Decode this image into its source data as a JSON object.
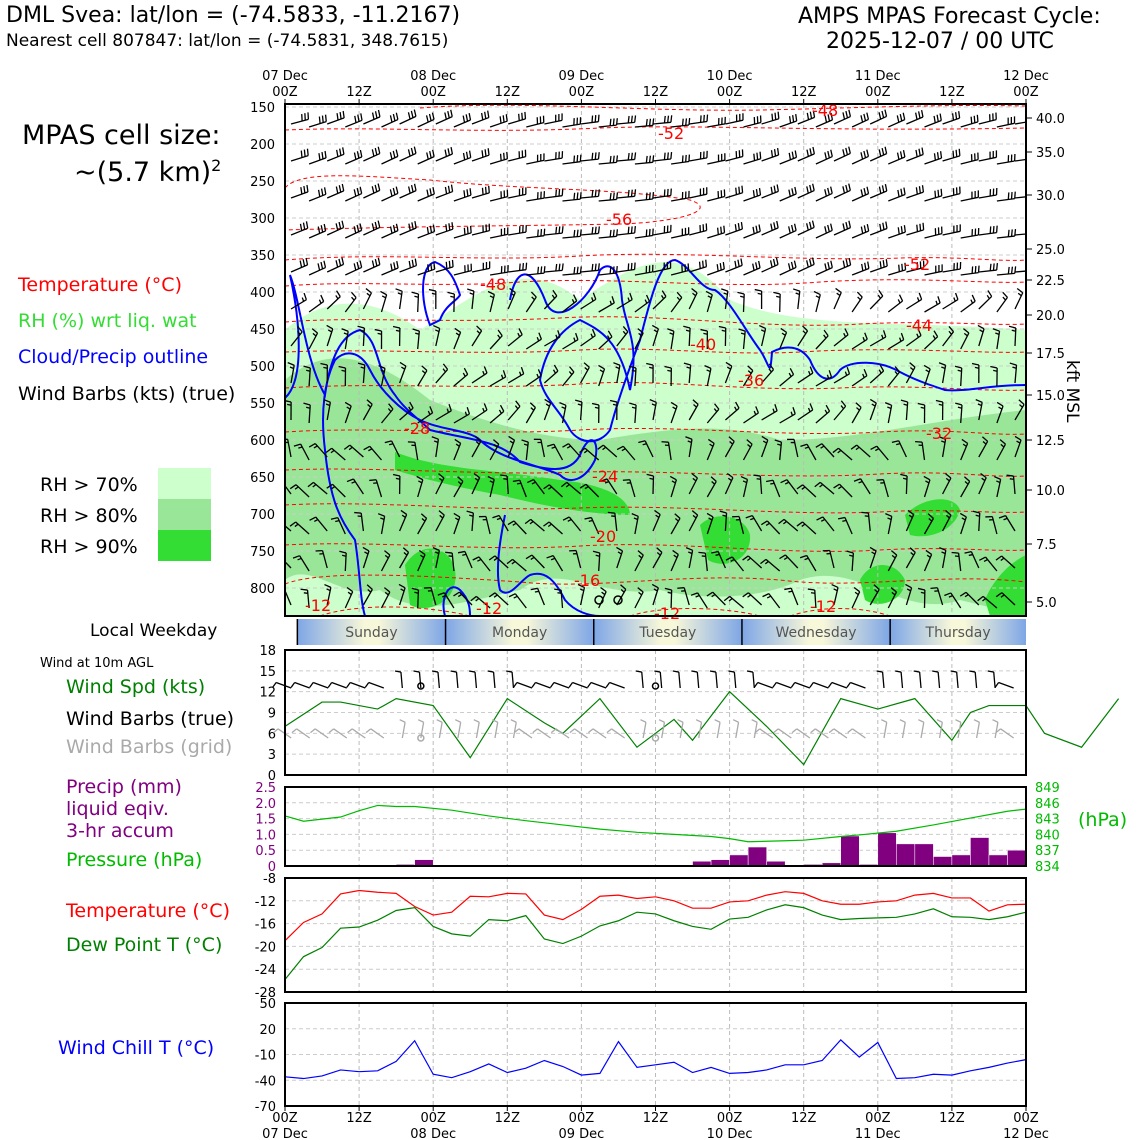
{
  "header": {
    "station_line": "DML Svea: lat/lon = (-74.5833, -11.2167)",
    "cell_line": "Nearest cell 807847: lat/lon = (-74.5831, 348.7615)",
    "cycle_title": "AMPS MPAS Forecast Cycle:",
    "cycle_time": "2025-12-07 / 00 UTC"
  },
  "left_panel": {
    "cell_size_title": "MPAS cell size:",
    "cell_size_value": "~(5.7 km)",
    "cell_size_exp": "2",
    "legend_temp": "Temperature (°C)",
    "legend_rh": "RH (%) wrt liq. wat",
    "legend_cloud": "Cloud/Precip outline",
    "legend_wind": "Wind Barbs (kts) (true)",
    "rh70": "RH > 70%",
    "rh80": "RH > 80%",
    "rh90": "RH > 90%",
    "local_weekday": "Local Weekday",
    "wind10m": "Wind at 10m AGL",
    "wind_spd": "Wind Spd (kts)",
    "wind_barbs_true": "Wind Barbs (true)",
    "wind_barbs_grid": "Wind Barbs (grid)",
    "precip_l1": "Precip (mm)",
    "precip_l2": "liquid eqiv.",
    "precip_l3": "3-hr accum",
    "pressure_label": "Pressure (hPa)",
    "temp_label": "Temperature (°C)",
    "dew_label": "Dew Point T (°C)",
    "chill_label": "Wind Chill T (°C)",
    "hpa_right": "(hPa)",
    "kft_label": "kft MSL"
  },
  "colors": {
    "temp": "#ff0000",
    "rh_text": "#33dd33",
    "cloud": "#0000ff",
    "rh70": "#ccffcc",
    "rh80": "#99e699",
    "rh90": "#33dd33",
    "wind_spd": "#008000",
    "grid_barb": "#aaaaaa",
    "precip": "#800080",
    "pressure": "#00bb00",
    "chill": "#0000ff",
    "dew": "#008000"
  },
  "chart_data": {
    "time_top_labels": [
      [
        "07 Dec",
        "00Z"
      ],
      [
        "",
        "12Z"
      ],
      [
        "08 Dec",
        "00Z"
      ],
      [
        "",
        "12Z"
      ],
      [
        "09 Dec",
        "00Z"
      ],
      [
        "",
        "12Z"
      ],
      [
        "10 Dec",
        "00Z"
      ],
      [
        "",
        "12Z"
      ],
      [
        "11 Dec",
        "00Z"
      ],
      [
        "",
        "12Z"
      ],
      [
        "12 Dec",
        "00Z"
      ]
    ],
    "time_bottom_labels": [
      [
        "00Z",
        "07 Dec"
      ],
      [
        "12Z",
        ""
      ],
      [
        "00Z",
        "08 Dec"
      ],
      [
        "12Z",
        ""
      ],
      [
        "00Z",
        "09 Dec"
      ],
      [
        "12Z",
        ""
      ],
      [
        "00Z",
        "10 Dec"
      ],
      [
        "12Z",
        ""
      ],
      [
        "00Z",
        "11 Dec"
      ],
      [
        "12Z",
        ""
      ],
      [
        "00Z",
        "12 Dec"
      ]
    ],
    "weekdays": [
      "Sunday",
      "Monday",
      "Tuesday",
      "Wednesday",
      "Thursday"
    ],
    "pressure_levels": [
      "150",
      "200",
      "250",
      "300",
      "350",
      "400",
      "450",
      "500",
      "550",
      "600",
      "650",
      "700",
      "750",
      "800"
    ],
    "kft_levels": [
      "40.0",
      "35.0",
      "30.0",
      "25.0",
      "22.5",
      "20.0",
      "17.5",
      "15.0",
      "12.5",
      "10.0",
      "7.5",
      "5.0"
    ],
    "temp_contour_labels": [
      "-48",
      "-52",
      "-56",
      "-52",
      "-48",
      "-44",
      "-40",
      "-36",
      "-32",
      "-28",
      "-24",
      "-20",
      "-16",
      "-12",
      "-12",
      "-12",
      "-12"
    ],
    "wind_speed": {
      "type": "line",
      "ylim": [
        0,
        18
      ],
      "yticks": [
        "18",
        "15",
        "12",
        "9",
        "6",
        "3",
        "0"
      ],
      "hours": [
        0,
        6,
        9,
        15,
        18,
        24,
        30,
        36,
        42,
        45,
        51,
        57,
        63,
        66,
        72,
        78,
        84,
        90,
        96,
        102,
        108,
        111,
        114,
        117,
        120,
        123,
        129,
        135
      ],
      "values": [
        7,
        10.5,
        10.5,
        9.5,
        11,
        10,
        2.5,
        11,
        7.5,
        6,
        11,
        4,
        8,
        5,
        12,
        7,
        1.5,
        11,
        9.5,
        11,
        5,
        9,
        10,
        10,
        10,
        6,
        4,
        11
      ]
    },
    "precip": {
      "type": "bar",
      "ylim": [
        0,
        2.5
      ],
      "yticks": [
        "2.5",
        "2.0",
        "1.5",
        "1.0",
        "0.5",
        "0"
      ],
      "bars_hour": [
        18,
        21,
        66,
        69,
        72,
        75,
        78,
        81,
        84,
        87,
        90,
        93,
        96,
        99,
        102,
        105,
        108,
        111,
        114,
        117
      ],
      "bars_mm": [
        0.05,
        0.2,
        0.15,
        0.2,
        0.35,
        0.6,
        0.15,
        0.02,
        0.05,
        0.1,
        0.95,
        0.05,
        1.05,
        0.7,
        0.7,
        0.3,
        0.35,
        0.9,
        0.35,
        0.5
      ],
      "pressure_ticks": [
        "849",
        "846",
        "843",
        "840",
        "837",
        "834"
      ],
      "pressure_range": [
        834,
        849
      ],
      "pressure_hours": [
        0,
        3,
        9,
        12,
        15,
        18,
        21,
        27,
        33,
        39,
        45,
        51,
        57,
        63,
        69,
        72,
        75,
        81,
        84,
        90,
        93,
        99,
        105,
        111,
        117,
        120
      ],
      "pressure_hpa": [
        843.5,
        842.5,
        843.3,
        844.5,
        845.5,
        845.3,
        845.3,
        844.6,
        843.5,
        842.6,
        841.8,
        841.0,
        840.4,
        840.0,
        839.6,
        839.2,
        838.6,
        838.8,
        838.9,
        839.6,
        839.9,
        840.6,
        841.8,
        843.1,
        844.4,
        844.8
      ]
    },
    "temperature": {
      "type": "line",
      "ylim": [
        -28,
        -8
      ],
      "yticks": [
        "-8",
        "-12",
        "-16",
        "-20",
        "-24",
        "-28"
      ],
      "hours": [
        0,
        3,
        6,
        9,
        12,
        15,
        18,
        21,
        24,
        27,
        30,
        33,
        36,
        39,
        42,
        45,
        48,
        51,
        54,
        57,
        60,
        63,
        66,
        69,
        72,
        75,
        78,
        81,
        84,
        87,
        90,
        93,
        96,
        99,
        102,
        105,
        108,
        111,
        114,
        117,
        120
      ],
      "temp": [
        -19,
        -15.8,
        -14.3,
        -10.8,
        -10.2,
        -10.5,
        -10.7,
        -13,
        -14.5,
        -14,
        -11.2,
        -11.3,
        -10.7,
        -10.8,
        -14.5,
        -15.3,
        -13.5,
        -11.2,
        -11,
        -11.6,
        -11.3,
        -12,
        -13.3,
        -13.3,
        -12.2,
        -12,
        -11,
        -10.4,
        -10.7,
        -12,
        -12.6,
        -12.6,
        -12.2,
        -12,
        -11,
        -10.7,
        -11.5,
        -11.5,
        -13.8,
        -12.7,
        -12.6
      ],
      "dew": [
        -25.8,
        -21.8,
        -20.2,
        -16.8,
        -16.6,
        -15.4,
        -13.7,
        -13.2,
        -16.5,
        -17.8,
        -18.2,
        -15.3,
        -15.5,
        -14.6,
        -18.7,
        -19.5,
        -18.2,
        -16.4,
        -15.5,
        -14,
        -14.3,
        -15.5,
        -16.5,
        -17,
        -15.2,
        -14.9,
        -13.6,
        -12.7,
        -13.2,
        -14.5,
        -15.3,
        -15.1,
        -15,
        -14.9,
        -14.3,
        -13.4,
        -14.8,
        -14.9,
        -15.3,
        -14.8,
        -14
      ]
    },
    "wind_chill": {
      "type": "line",
      "ylim": [
        -70,
        50
      ],
      "yticks": [
        "50",
        "20",
        "-10",
        "-40",
        "-70"
      ],
      "hours": [
        0,
        3,
        6,
        9,
        12,
        15,
        18,
        21,
        24,
        27,
        30,
        33,
        36,
        39,
        42,
        45,
        48,
        51,
        54,
        57,
        60,
        63,
        66,
        69,
        72,
        75,
        78,
        81,
        84,
        87,
        90,
        93,
        96,
        99,
        102,
        105,
        108,
        111,
        114,
        117,
        120
      ],
      "values": [
        -36,
        -38,
        -35,
        -28,
        -30,
        -29,
        -18,
        6,
        -33,
        -37,
        -30,
        -21,
        -31,
        -26,
        -17,
        -24,
        -34,
        -32,
        5,
        -25,
        -22,
        -19,
        -31,
        -25,
        -32,
        -31,
        -28,
        -22,
        -22,
        -17,
        7,
        -13,
        4,
        -38,
        -37,
        -33,
        -34,
        -29,
        -25,
        -20,
        -16
      ]
    }
  }
}
